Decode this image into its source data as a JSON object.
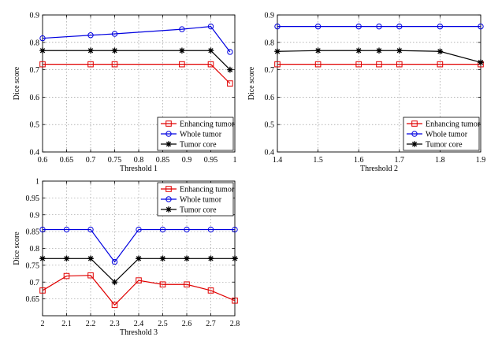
{
  "chart_data": [
    {
      "type": "line",
      "xlabel": "Threshold 1",
      "ylabel": "Dice score",
      "xlim": [
        0.6,
        1.0
      ],
      "ylim": [
        0.4,
        0.9
      ],
      "xticks": [
        0.6,
        0.65,
        0.7,
        0.75,
        0.8,
        0.85,
        0.9,
        0.95,
        1
      ],
      "xtick_labels": [
        "0.6",
        "0.65",
        "0.7",
        "0.75",
        "0.8",
        "0.85",
        "0.9",
        "0.95",
        "1"
      ],
      "yticks": [
        0.4,
        0.5,
        0.6,
        0.7,
        0.8,
        0.9
      ],
      "ytick_labels": [
        "0.4",
        "0.5",
        "0.6",
        "0.7",
        "0.8",
        "0.9"
      ],
      "grid": true,
      "legend_position": "bottom-right",
      "series": [
        {
          "name": "Enhancing tumor",
          "color": "#e00000",
          "marker": "square",
          "x": [
            0.6,
            0.7,
            0.75,
            0.89,
            0.95,
            0.99
          ],
          "y": [
            0.72,
            0.72,
            0.72,
            0.72,
            0.72,
            0.65
          ]
        },
        {
          "name": "Whole tumor",
          "color": "#0000e0",
          "marker": "circle",
          "x": [
            0.6,
            0.7,
            0.75,
            0.89,
            0.95,
            0.99
          ],
          "y": [
            0.815,
            0.826,
            0.831,
            0.848,
            0.858,
            0.765
          ]
        },
        {
          "name": "Tumor core",
          "color": "#000000",
          "marker": "star",
          "x": [
            0.6,
            0.7,
            0.75,
            0.89,
            0.95,
            0.99
          ],
          "y": [
            0.77,
            0.77,
            0.77,
            0.77,
            0.77,
            0.7
          ]
        }
      ]
    },
    {
      "type": "line",
      "xlabel": "Threshold 2",
      "ylabel": "Dice score",
      "xlim": [
        1.4,
        1.9
      ],
      "ylim": [
        0.4,
        0.9
      ],
      "xticks": [
        1.4,
        1.5,
        1.6,
        1.7,
        1.8,
        1.9
      ],
      "xtick_labels": [
        "1.4",
        "1.5",
        "1.6",
        "1.7",
        "1.8",
        "1.9"
      ],
      "yticks": [
        0.4,
        0.5,
        0.6,
        0.7,
        0.8,
        0.9
      ],
      "ytick_labels": [
        "0.4",
        "0.5",
        "0.6",
        "0.7",
        "0.8",
        "0.9"
      ],
      "grid": true,
      "legend_position": "bottom-right",
      "series": [
        {
          "name": "Enhancing tumor",
          "color": "#e00000",
          "marker": "square",
          "x": [
            1.4,
            1.5,
            1.6,
            1.65,
            1.7,
            1.8,
            1.9
          ],
          "y": [
            0.72,
            0.72,
            0.72,
            0.72,
            0.72,
            0.72,
            0.72
          ]
        },
        {
          "name": "Whole tumor",
          "color": "#0000e0",
          "marker": "circle",
          "x": [
            1.4,
            1.5,
            1.6,
            1.65,
            1.7,
            1.8,
            1.9
          ],
          "y": [
            0.858,
            0.858,
            0.858,
            0.858,
            0.858,
            0.858,
            0.858
          ]
        },
        {
          "name": "Tumor core",
          "color": "#000000",
          "marker": "star",
          "x": [
            1.4,
            1.5,
            1.6,
            1.65,
            1.7,
            1.8,
            1.9
          ],
          "y": [
            0.767,
            0.77,
            0.77,
            0.77,
            0.77,
            0.767,
            0.727
          ]
        }
      ]
    },
    {
      "type": "line",
      "xlabel": "Threshold 3",
      "ylabel": "Dice score",
      "xlim": [
        2.0,
        2.8
      ],
      "ylim": [
        0.6,
        1.0
      ],
      "xticks": [
        2,
        2.1,
        2.2,
        2.3,
        2.4,
        2.5,
        2.6,
        2.7,
        2.8
      ],
      "xtick_labels": [
        "2",
        "2.1",
        "2.2",
        "2.3",
        "2.4",
        "2.5",
        "2.6",
        "2.7",
        "2.8"
      ],
      "yticks": [
        0.65,
        0.7,
        0.75,
        0.8,
        0.85,
        0.9,
        0.95,
        1
      ],
      "ytick_labels": [
        "0.65",
        "0.7",
        "0.75",
        "0.8",
        "0.85",
        "0.9",
        "0.95",
        "1"
      ],
      "grid": true,
      "legend_position": "top-right",
      "series": [
        {
          "name": "Enhancing tumor",
          "color": "#e00000",
          "marker": "square",
          "x": [
            2.0,
            2.1,
            2.2,
            2.3,
            2.4,
            2.5,
            2.6,
            2.7,
            2.8
          ],
          "y": [
            0.675,
            0.718,
            0.72,
            0.632,
            0.705,
            0.693,
            0.693,
            0.675,
            0.645
          ]
        },
        {
          "name": "Whole tumor",
          "color": "#0000e0",
          "marker": "circle",
          "x": [
            2.0,
            2.1,
            2.2,
            2.3,
            2.4,
            2.5,
            2.6,
            2.7,
            2.8
          ],
          "y": [
            0.856,
            0.856,
            0.856,
            0.76,
            0.856,
            0.856,
            0.856,
            0.856,
            0.856
          ]
        },
        {
          "name": "Tumor core",
          "color": "#000000",
          "marker": "star",
          "x": [
            2.0,
            2.1,
            2.2,
            2.3,
            2.4,
            2.5,
            2.6,
            2.7,
            2.8
          ],
          "y": [
            0.77,
            0.77,
            0.77,
            0.7,
            0.77,
            0.77,
            0.77,
            0.77,
            0.77
          ]
        }
      ]
    }
  ]
}
